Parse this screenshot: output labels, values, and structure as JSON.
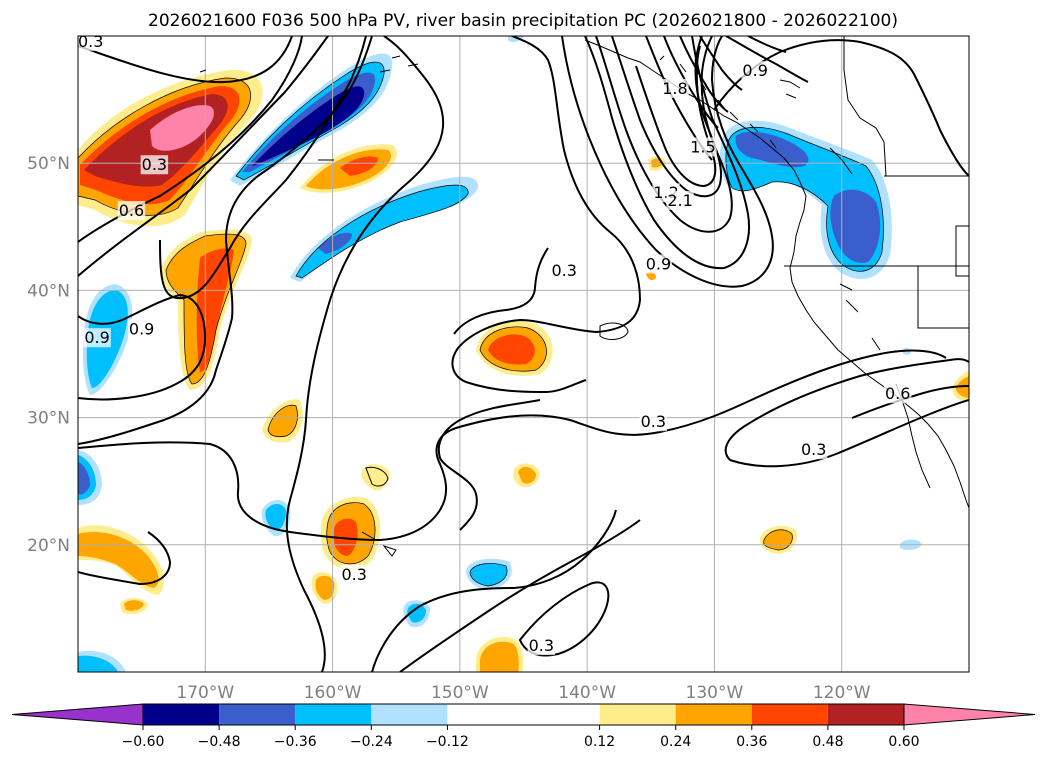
{
  "chart_data": {
    "type": "map",
    "title": "2026021600 F036 500 hPa PV, river basin precipitation PC (2026021800 - 2026022100)",
    "lon_range": [
      -180,
      -110
    ],
    "lat_range": [
      10,
      60
    ],
    "lon_ticks": [
      {
        "lon": -170,
        "label": "170°W"
      },
      {
        "lon": -160,
        "label": "160°W"
      },
      {
        "lon": -150,
        "label": "150°W"
      },
      {
        "lon": -140,
        "label": "140°W"
      },
      {
        "lon": -130,
        "label": "130°W"
      },
      {
        "lon": -120,
        "label": "120°W"
      }
    ],
    "lat_ticks": [
      {
        "lat": 20,
        "label": "20°N"
      },
      {
        "lat": 30,
        "label": "30°N"
      },
      {
        "lat": 40,
        "label": "40°N"
      },
      {
        "lat": 50,
        "label": "50°N"
      }
    ],
    "grid": true,
    "colorbar": {
      "levels": [
        -0.72,
        -0.6,
        -0.48,
        -0.36,
        -0.24,
        -0.12,
        0.12,
        0.24,
        0.36,
        0.48,
        0.6,
        0.72
      ],
      "colors": [
        "#9932cc",
        "#00008b",
        "#3a5fcd",
        "#00bfff",
        "#b0e2ff",
        "#ffffff",
        "#ffec8b",
        "#ffa500",
        "#ff4500",
        "#b22222",
        "#ff82ab"
      ],
      "under_color": "#9932cc",
      "over_color": "#ff82ab",
      "extend": "both",
      "tick_labels": [
        "−0.60",
        "−0.48",
        "−0.36",
        "−0.24",
        "−0.12",
        "0.12",
        "0.24",
        "0.36",
        "0.48",
        "0.60"
      ],
      "tick_values": [
        -0.6,
        -0.48,
        -0.36,
        -0.24,
        -0.12,
        0.12,
        0.24,
        0.36,
        0.48,
        0.6
      ],
      "placement": "bottom"
    },
    "contour_field": "500 hPa PV",
    "contour_labels": [
      {
        "text": "0.3",
        "lon": -179.0,
        "lat": 59.5
      },
      {
        "text": "0.3",
        "lon": -174.0,
        "lat": 49.8
      },
      {
        "text": "0.6",
        "lon": -175.8,
        "lat": 46.2
      },
      {
        "text": "0.9",
        "lon": -178.5,
        "lat": 36.2
      },
      {
        "text": "0.9",
        "lon": -175.0,
        "lat": 36.9
      },
      {
        "text": "0.3",
        "lon": -141.8,
        "lat": 41.5
      },
      {
        "text": "1.8",
        "lon": -133.1,
        "lat": 55.8
      },
      {
        "text": "1.5",
        "lon": -130.9,
        "lat": 51.2
      },
      {
        "text": "1.2",
        "lon": -133.8,
        "lat": 47.6
      },
      {
        "text": "2.1",
        "lon": -132.7,
        "lat": 47.0
      },
      {
        "text": "0.9",
        "lon": -134.4,
        "lat": 42.0
      },
      {
        "text": "0.9",
        "lon": -126.8,
        "lat": 57.2
      },
      {
        "text": "0.3",
        "lon": -134.8,
        "lat": 29.6
      },
      {
        "text": "0.3",
        "lon": -122.2,
        "lat": 27.4
      },
      {
        "text": "0.6",
        "lon": -115.6,
        "lat": 31.8
      },
      {
        "text": "0.3",
        "lon": -158.3,
        "lat": 17.6
      },
      {
        "text": "0.3",
        "lon": -143.6,
        "lat": 12.0
      }
    ]
  }
}
